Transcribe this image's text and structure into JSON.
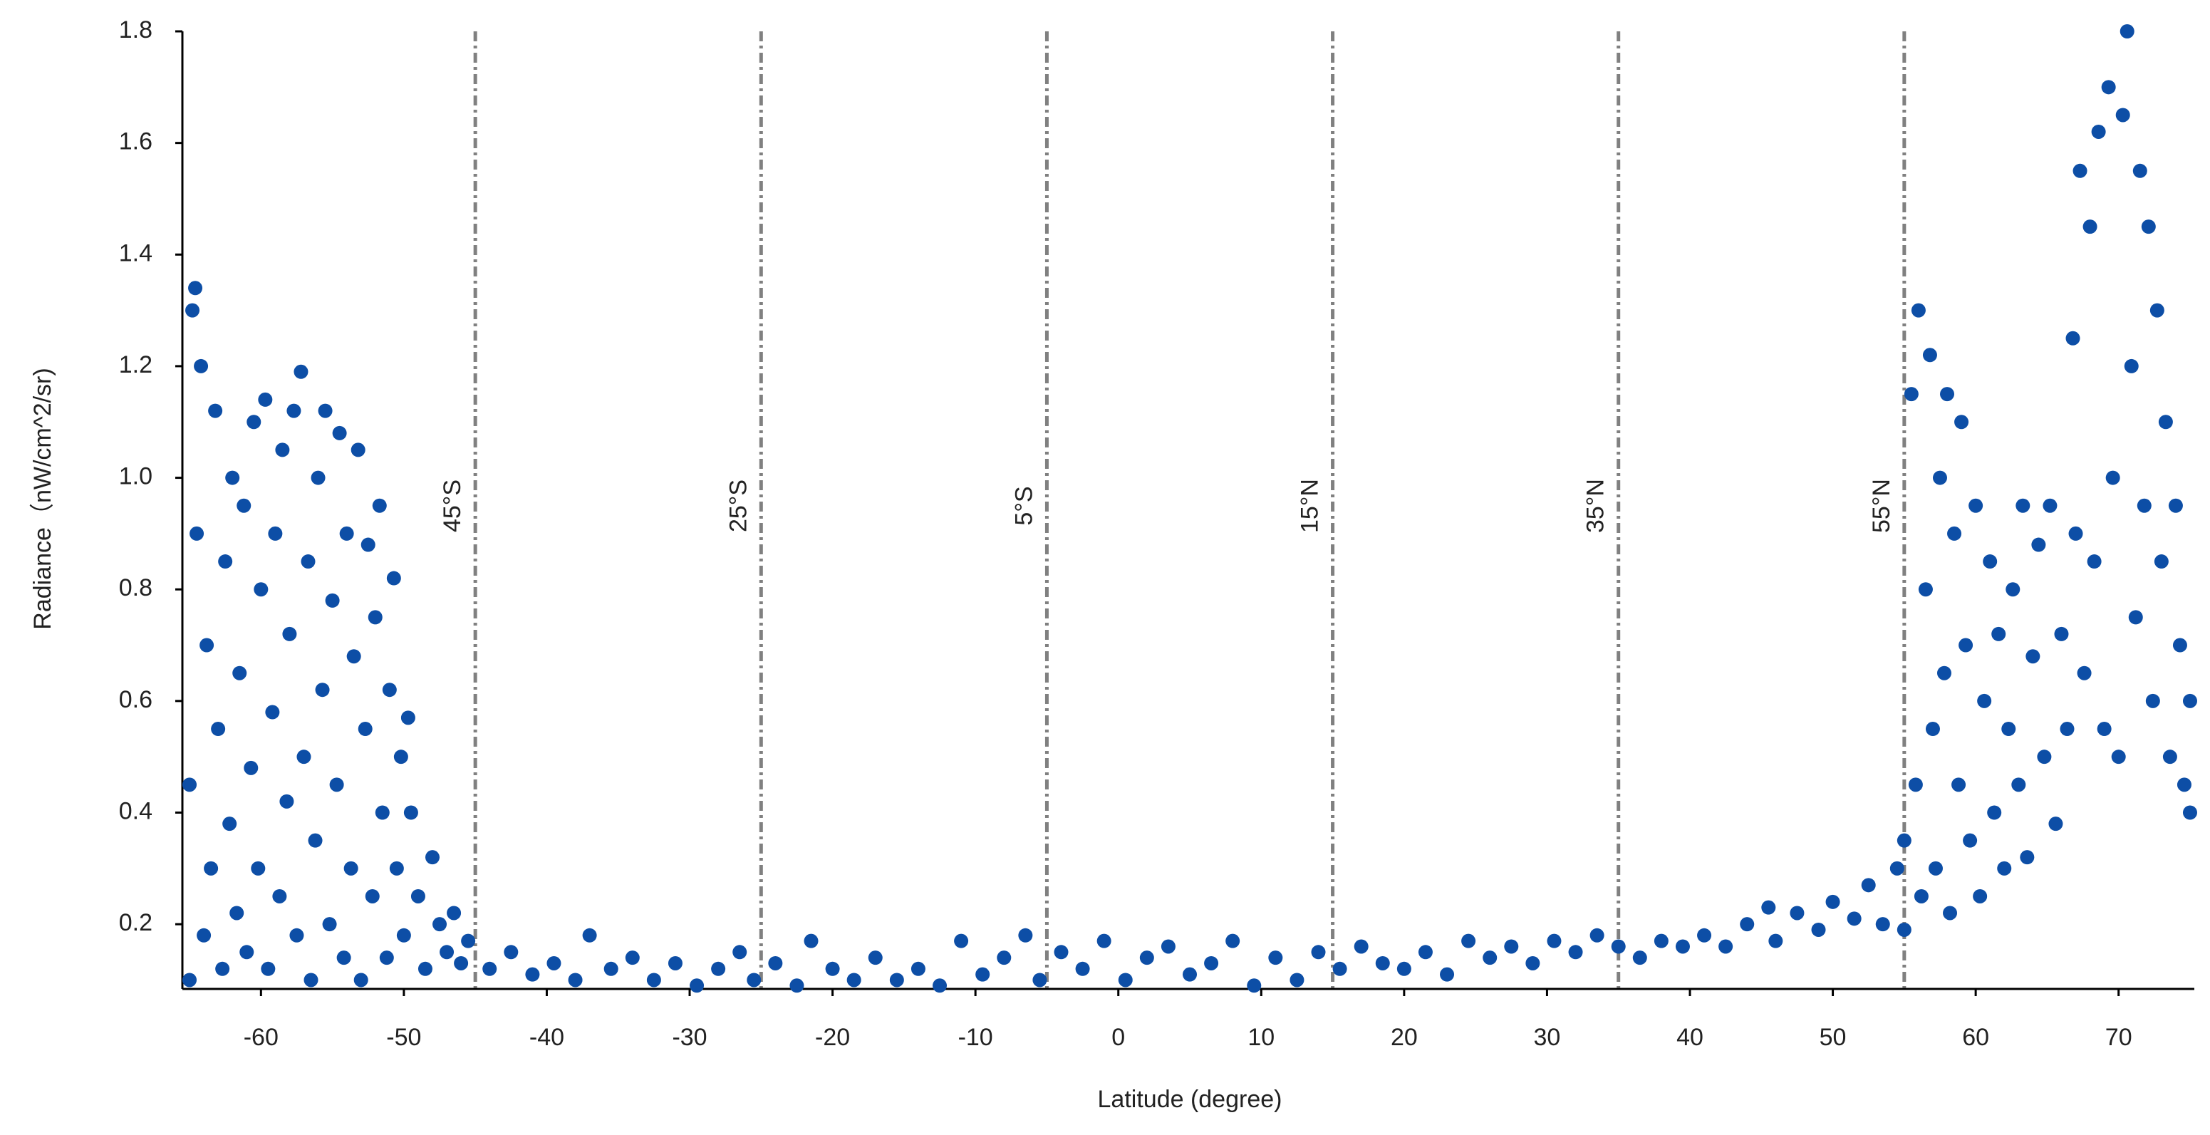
{
  "chart_data": {
    "type": "scatter",
    "x_label": "Latitude (degree)",
    "y_label": "Radiance（nW/cm^2/sr)",
    "color": "#0d4ea6",
    "xlim": [
      -65.5,
      75.3
    ],
    "ylim": [
      0.084,
      1.8
    ],
    "xticks": [
      -60,
      -50,
      -40,
      -30,
      -20,
      -10,
      0,
      10,
      20,
      30,
      40,
      50,
      60,
      70
    ],
    "yticks": [
      0.2,
      0.4,
      0.6,
      0.8,
      {
        "value": 1,
        "label": "1.0"
      },
      1.2,
      1.4,
      1.6,
      1.8
    ],
    "vlines": [
      {
        "x": -45,
        "label": "45°S"
      },
      {
        "x": -25,
        "label": "25°S"
      },
      {
        "x": -5,
        "label": "5°S"
      },
      {
        "x": 15,
        "label": "15°N"
      },
      {
        "x": 35,
        "label": "35°N"
      },
      {
        "x": 55,
        "label": "55°N"
      }
    ],
    "x": [
      -65,
      -65,
      -64.8,
      -64.6,
      -64.5,
      -64.2,
      -64,
      -63.8,
      -63.5,
      -63.2,
      -63,
      -62.7,
      -62.5,
      -62.2,
      -62,
      -61.7,
      -61.5,
      -61.2,
      -61,
      -60.7,
      -60.5,
      -60.2,
      -60,
      -59.7,
      -59.5,
      -59.2,
      -59,
      -58.7,
      -58.5,
      -58.2,
      -58,
      -57.7,
      -57.5,
      -57.2,
      -57,
      -56.7,
      -56.5,
      -56.2,
      -56,
      -55.7,
      -55.5,
      -55.2,
      -55,
      -54.7,
      -54.5,
      -54.2,
      -54,
      -53.7,
      -53.5,
      -53.2,
      -53,
      -52.7,
      -52.5,
      -52.2,
      -52,
      -51.7,
      -51.5,
      -51.2,
      -51,
      -50.7,
      -50.5,
      -50.2,
      -50,
      -49.7,
      -49.5,
      -49,
      -48.5,
      -48,
      -47.5,
      -47,
      -46.5,
      -46,
      -45.5,
      -44,
      -42.5,
      -41,
      -39.5,
      -38,
      -37,
      -35.5,
      -34,
      -32.5,
      -31,
      -29.5,
      -28,
      -26.5,
      -25.5,
      -24,
      -22.5,
      -21.5,
      -20,
      -18.5,
      -17,
      -15.5,
      -14,
      -12.5,
      -11,
      -9.5,
      -8,
      -6.5,
      -5.5,
      -4,
      -2.5,
      -1,
      0.5,
      2,
      3.5,
      5,
      6.5,
      8,
      9.5,
      11,
      12.5,
      14,
      15.5,
      17,
      18.5,
      20,
      21.5,
      23,
      24.5,
      26,
      27.5,
      29,
      30.5,
      32,
      33.5,
      35,
      36.5,
      38,
      39.5,
      41,
      42.5,
      44,
      45.5,
      46,
      47.5,
      49,
      50,
      51.5,
      52.5,
      53.5,
      54.5,
      55,
      55,
      55.5,
      55.8,
      56,
      56.2,
      56.5,
      56.8,
      57,
      57.2,
      57.5,
      57.8,
      58,
      58.2,
      58.5,
      58.8,
      59,
      59.3,
      59.6,
      60,
      60.3,
      60.6,
      61,
      61.3,
      61.6,
      62,
      62.3,
      62.6,
      63,
      63.3,
      63.6,
      64,
      64.4,
      64.8,
      65.2,
      65.6,
      66,
      66.4,
      66.8,
      67,
      67.3,
      67.6,
      68,
      68.3,
      68.6,
      69,
      69.3,
      69.6,
      70,
      70.3,
      70.6,
      70.9,
      71.2,
      71.5,
      71.8,
      72.1,
      72.4,
      72.7,
      73,
      73.3,
      73.6,
      74,
      74.3,
      74.6,
      75,
      75
    ],
    "values": [
      0.1,
      0.45,
      1.3,
      1.34,
      0.9,
      1.2,
      0.18,
      0.7,
      0.3,
      1.12,
      0.55,
      0.12,
      0.85,
      0.38,
      1.0,
      0.22,
      0.65,
      0.95,
      0.15,
      0.48,
      1.1,
      0.3,
      0.8,
      1.14,
      0.12,
      0.58,
      0.9,
      0.25,
      1.05,
      0.42,
      0.72,
      1.12,
      0.18,
      1.19,
      0.5,
      0.85,
      0.1,
      0.35,
      1.0,
      0.62,
      1.12,
      0.2,
      0.78,
      0.45,
      1.08,
      0.14,
      0.9,
      0.3,
      0.68,
      1.05,
      0.1,
      0.55,
      0.88,
      0.25,
      0.75,
      0.95,
      0.4,
      0.14,
      0.62,
      0.82,
      0.3,
      0.5,
      0.18,
      0.57,
      0.4,
      0.25,
      0.12,
      0.32,
      0.2,
      0.15,
      0.22,
      0.13,
      0.17,
      0.12,
      0.15,
      0.11,
      0.13,
      0.1,
      0.18,
      0.12,
      0.14,
      0.1,
      0.13,
      0.09,
      0.12,
      0.15,
      0.1,
      0.13,
      0.09,
      0.17,
      0.12,
      0.1,
      0.14,
      0.1,
      0.12,
      0.09,
      0.17,
      0.11,
      0.14,
      0.18,
      0.1,
      0.15,
      0.12,
      0.17,
      0.1,
      0.14,
      0.16,
      0.11,
      0.13,
      0.17,
      0.09,
      0.14,
      0.1,
      0.15,
      0.12,
      0.16,
      0.13,
      0.12,
      0.15,
      0.11,
      0.17,
      0.14,
      0.16,
      0.13,
      0.17,
      0.15,
      0.18,
      0.16,
      0.14,
      0.17,
      0.16,
      0.18,
      0.16,
      0.2,
      0.23,
      0.17,
      0.22,
      0.19,
      0.24,
      0.21,
      0.27,
      0.2,
      0.3,
      0.35,
      0.19,
      1.15,
      0.45,
      1.3,
      0.25,
      0.8,
      1.22,
      0.55,
      0.3,
      1.0,
      0.65,
      1.15,
      0.22,
      0.9,
      0.45,
      1.1,
      0.7,
      0.35,
      0.95,
      0.25,
      0.6,
      0.85,
      0.4,
      0.72,
      0.3,
      0.55,
      0.8,
      0.45,
      0.95,
      0.32,
      0.68,
      0.88,
      0.5,
      0.95,
      0.38,
      0.72,
      0.55,
      1.25,
      0.9,
      1.55,
      0.65,
      1.45,
      0.85,
      1.62,
      0.55,
      1.7,
      1.0,
      0.5,
      1.65,
      1.8,
      1.2,
      0.75,
      1.55,
      0.95,
      1.45,
      0.6,
      1.3,
      0.85,
      1.1,
      0.5,
      0.95,
      0.7,
      0.45,
      0.4,
      0.6
    ]
  }
}
